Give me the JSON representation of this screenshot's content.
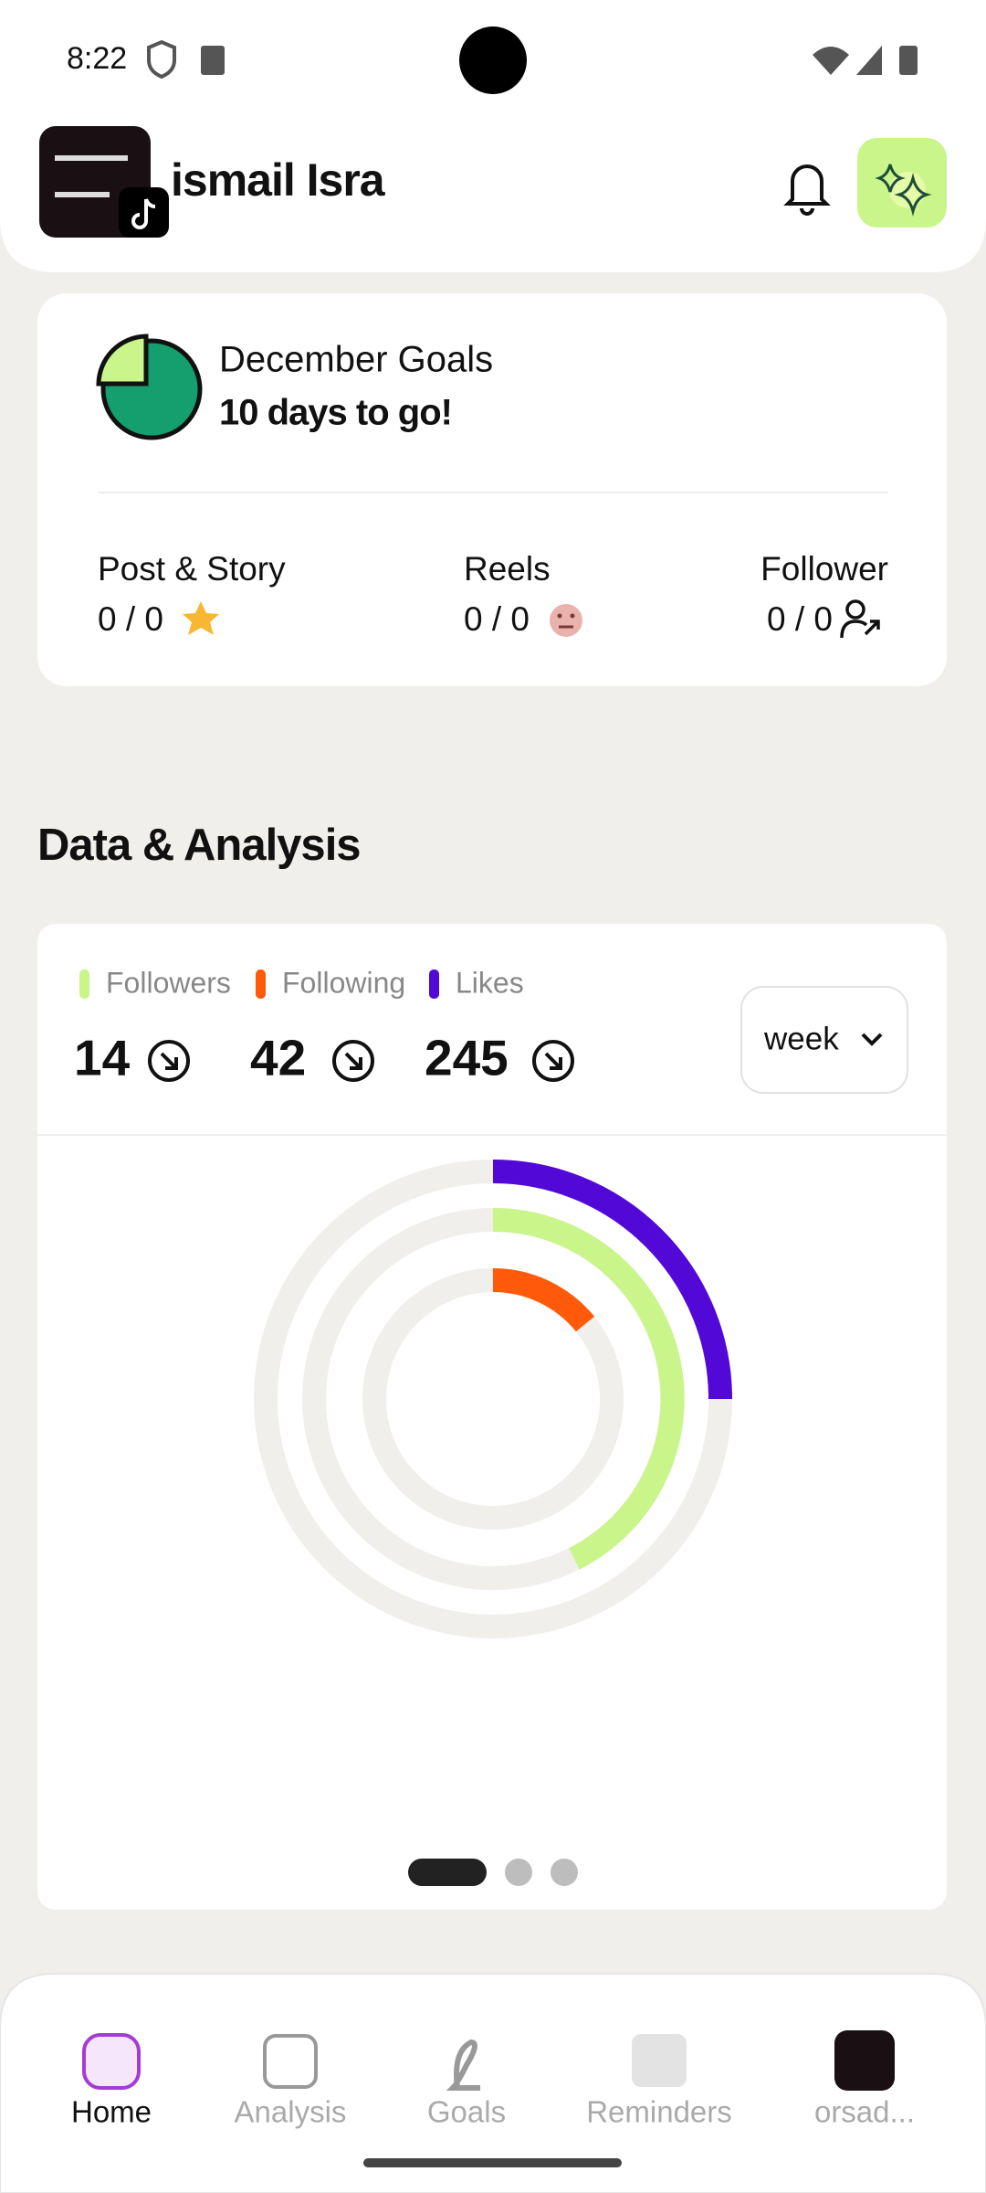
{
  "status_bar": {
    "time": "8:22"
  },
  "header": {
    "username": "ismail Isra"
  },
  "goals": {
    "title": "December Goals",
    "countdown": "10 days to go!",
    "stats": [
      {
        "label": "Post & Story",
        "value": "0 / 0"
      },
      {
        "label": "Reels",
        "value": "0 / 0"
      },
      {
        "label": "Follower",
        "value": "0 / 0"
      }
    ]
  },
  "analysis": {
    "title": "Data & Analysis",
    "legend": [
      "Followers",
      "Following",
      "Likes"
    ],
    "counts": [
      14,
      42,
      245
    ],
    "period": "week"
  },
  "nav": [
    "Home",
    "Analysis",
    "Goals",
    "Reminders",
    "orsad..."
  ]
}
